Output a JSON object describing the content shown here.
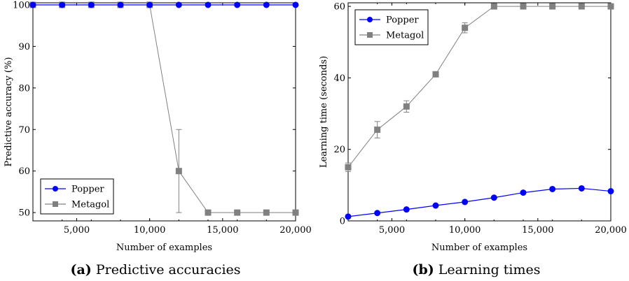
{
  "colors": {
    "popper": "#0000ff",
    "metagol": "#808080"
  },
  "chart_data": [
    {
      "type": "line",
      "xlabel": "Number of examples",
      "ylabel": "Predictive accuracy (%)",
      "xlim": [
        2000,
        20000
      ],
      "ylim": [
        48,
        100.5
      ],
      "xticks": [
        5000,
        10000,
        15000,
        20000
      ],
      "xtick_labels": [
        "5,000",
        "10,000",
        "15,000",
        "20,000"
      ],
      "yticks": [
        50,
        60,
        70,
        80,
        90,
        100
      ],
      "ytick_labels": [
        "50",
        "60",
        "70",
        "80",
        "90",
        "100"
      ],
      "legend": "bottom-left",
      "caption_letter": "(a)",
      "caption_text": "Predictive accuracies",
      "series": [
        {
          "name": "Popper",
          "marker": "circle",
          "x": [
            2000,
            4000,
            6000,
            8000,
            10000,
            12000,
            14000,
            16000,
            18000,
            20000
          ],
          "y": [
            100,
            100,
            100,
            100,
            100,
            100,
            100,
            100,
            100,
            100
          ],
          "err": [
            0,
            0,
            0,
            0,
            0,
            0,
            0,
            0,
            0,
            0
          ]
        },
        {
          "name": "Metagol",
          "marker": "square",
          "x": [
            2000,
            4000,
            6000,
            8000,
            10000,
            12000,
            14000,
            16000,
            18000,
            20000
          ],
          "y": [
            100,
            100,
            100,
            100,
            100,
            60,
            50,
            50,
            50,
            50
          ],
          "err": [
            0,
            0,
            0,
            0,
            0,
            10,
            0,
            0,
            0,
            0
          ]
        }
      ]
    },
    {
      "type": "line",
      "xlabel": "Number of examples",
      "ylabel": "Learning time (seconds)",
      "xlim": [
        2000,
        20000
      ],
      "ylim": [
        0,
        61
      ],
      "xticks": [
        5000,
        10000,
        15000,
        20000
      ],
      "xtick_labels": [
        "5,000",
        "10,000",
        "15,000",
        "20,000"
      ],
      "yticks": [
        0,
        20,
        40,
        60
      ],
      "ytick_labels": [
        "0",
        "20",
        "40",
        "60"
      ],
      "legend": "top-left",
      "caption_letter": "(b)",
      "caption_text": "Learning times",
      "series": [
        {
          "name": "Popper",
          "marker": "circle",
          "x": [
            2000,
            4000,
            6000,
            8000,
            10000,
            12000,
            14000,
            16000,
            18000,
            20000
          ],
          "y": [
            1.2,
            2.2,
            3.2,
            4.3,
            5.3,
            6.5,
            7.9,
            8.9,
            9.1,
            8.3
          ],
          "err": [
            0,
            0,
            0,
            0,
            0,
            0,
            0,
            0,
            0,
            0
          ]
        },
        {
          "name": "Metagol",
          "marker": "square",
          "x": [
            2000,
            4000,
            6000,
            8000,
            10000,
            12000,
            14000,
            16000,
            18000,
            20000
          ],
          "y": [
            15,
            25.5,
            32,
            41,
            54,
            60,
            60,
            60,
            60,
            60
          ],
          "err": [
            1.2,
            2.3,
            1.6,
            0.6,
            1.4,
            0.3,
            0,
            0,
            0,
            0
          ]
        }
      ]
    }
  ]
}
